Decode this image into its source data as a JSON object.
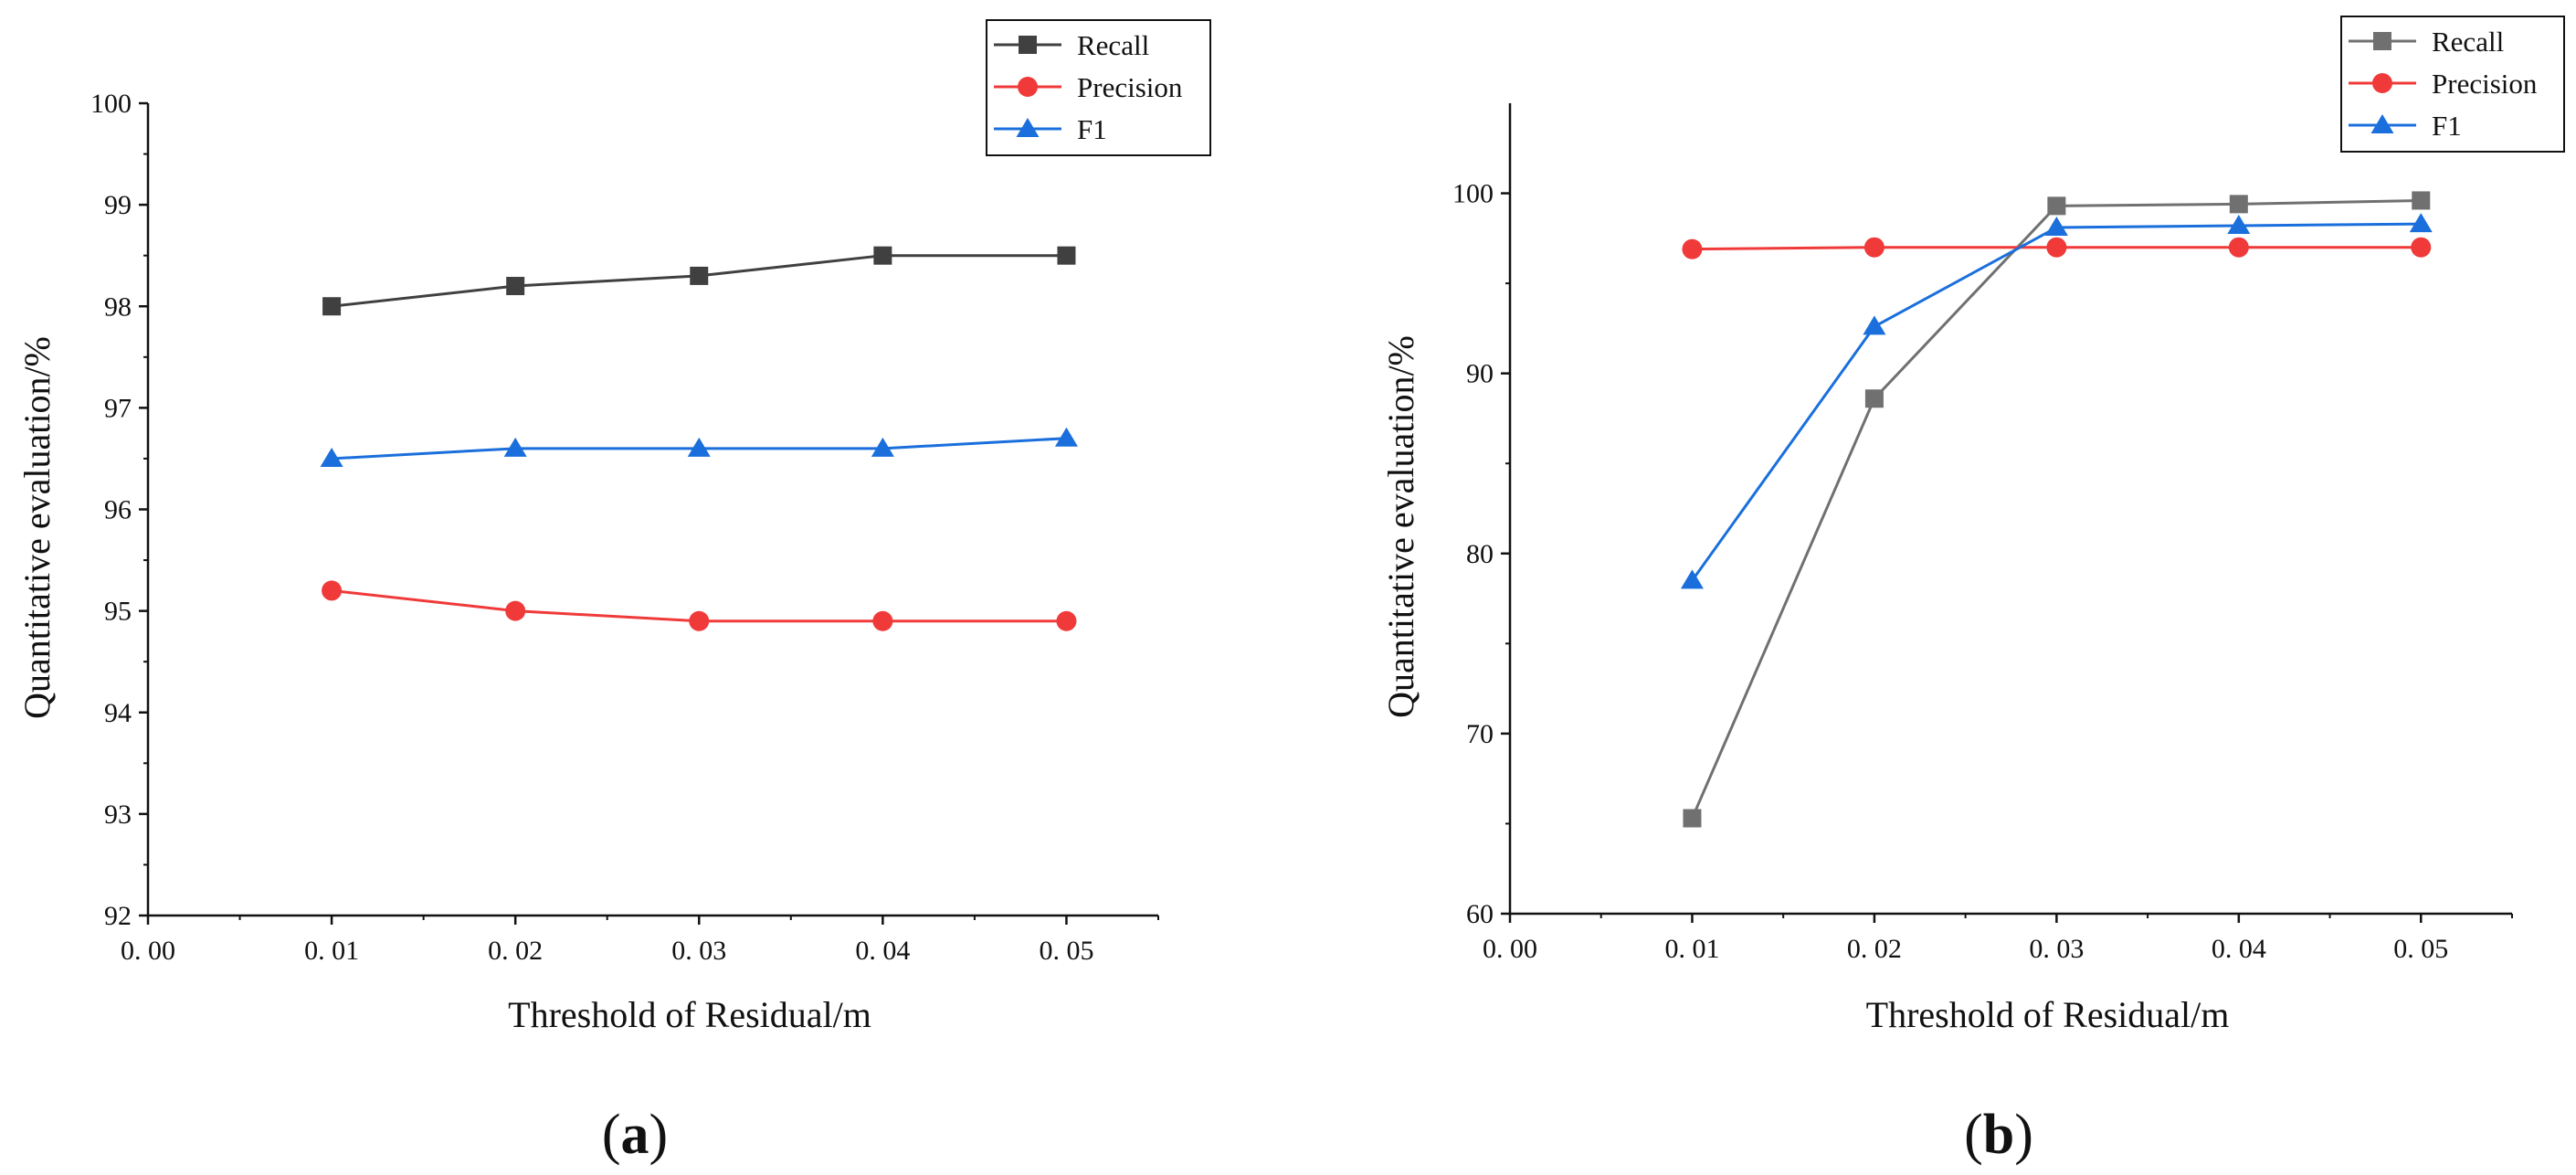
{
  "chart_data": [
    {
      "type": "line",
      "panel_label": "a",
      "xlabel": "Threshold of Residual/m",
      "ylabel": "Quantitative evaluation/%",
      "xlim": [
        0.0,
        0.055
      ],
      "ylim": [
        92,
        100
      ],
      "xticks": [
        0.0,
        0.01,
        0.02,
        0.03,
        0.04,
        0.05
      ],
      "xtick_labels": [
        "0. 00",
        "0. 01",
        "0. 02",
        "0. 03",
        "0. 04",
        "0. 05"
      ],
      "yticks": [
        92,
        93,
        94,
        95,
        96,
        97,
        98,
        99,
        100
      ],
      "ytick_labels": [
        "92",
        "93",
        "94",
        "95",
        "96",
        "97",
        "98",
        "99",
        "100"
      ],
      "x": [
        0.01,
        0.02,
        0.03,
        0.04,
        0.05
      ],
      "legend": "top-right",
      "series": [
        {
          "name": "Recall",
          "values": [
            98.0,
            98.2,
            98.3,
            98.5,
            98.5
          ],
          "color": "#404040",
          "marker": "square"
        },
        {
          "name": "Precision",
          "values": [
            95.2,
            95.0,
            94.9,
            94.9,
            94.9
          ],
          "color": "#f03a3a",
          "marker": "circle"
        },
        {
          "name": "F1",
          "values": [
            96.5,
            96.6,
            96.6,
            96.6,
            96.7
          ],
          "color": "#1a6fdc",
          "marker": "triangle"
        }
      ]
    },
    {
      "type": "line",
      "panel_label": "b",
      "xlabel": "Threshold of Residual/m",
      "ylabel": "Quantitative evaluation/%",
      "xlim": [
        0.0,
        0.055
      ],
      "ylim": [
        60,
        105
      ],
      "xticks": [
        0.0,
        0.01,
        0.02,
        0.03,
        0.04,
        0.05
      ],
      "xtick_labels": [
        "0. 00",
        "0. 01",
        "0. 02",
        "0. 03",
        "0. 04",
        "0. 05"
      ],
      "yticks": [
        60,
        70,
        80,
        90,
        100
      ],
      "ytick_labels": [
        "60",
        "70",
        "80",
        "90",
        "100"
      ],
      "x": [
        0.01,
        0.02,
        0.03,
        0.04,
        0.05
      ],
      "legend": "top-right",
      "series": [
        {
          "name": "Recall",
          "values": [
            65.3,
            88.6,
            99.3,
            99.4,
            99.6
          ],
          "color": "#707070",
          "marker": "square"
        },
        {
          "name": "Precision",
          "values": [
            96.9,
            97.0,
            97.0,
            97.0,
            97.0
          ],
          "color": "#f03a3a",
          "marker": "circle"
        },
        {
          "name": "F1",
          "values": [
            78.5,
            92.6,
            98.1,
            98.2,
            98.3
          ],
          "color": "#1a6fdc",
          "marker": "triangle"
        }
      ]
    }
  ]
}
